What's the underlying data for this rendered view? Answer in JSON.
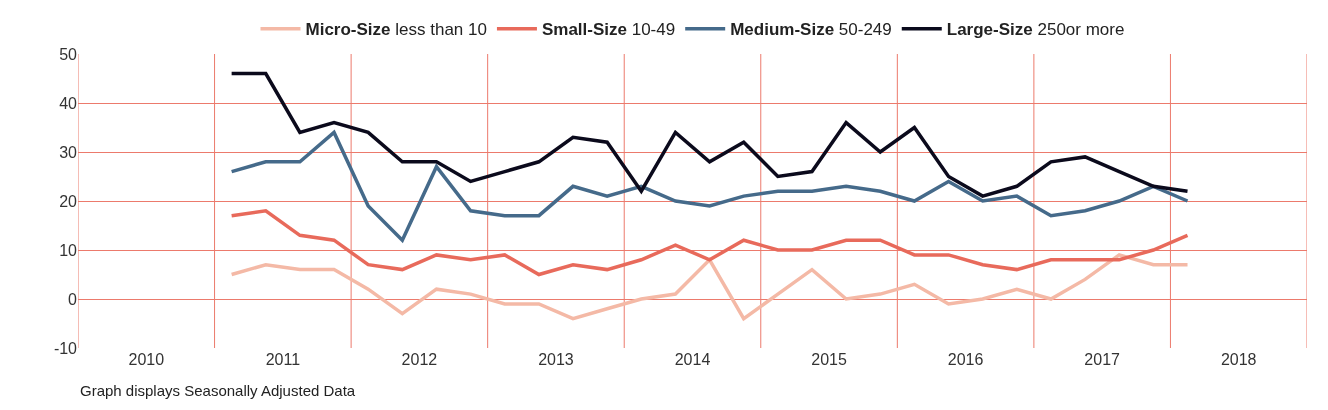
{
  "chart_data": {
    "type": "line",
    "x": [
      2010.625,
      2010.875,
      2011.125,
      2011.375,
      2011.625,
      2011.875,
      2012.125,
      2012.375,
      2012.625,
      2012.875,
      2013.125,
      2013.375,
      2013.625,
      2013.875,
      2014.125,
      2014.375,
      2014.625,
      2014.875,
      2015.125,
      2015.375,
      2015.625,
      2015.875,
      2016.125,
      2016.375,
      2016.625,
      2016.875,
      2017.125,
      2017.375,
      2017.625
    ],
    "series": [
      {
        "name": "Micro-Size less than 10",
        "color": "#f4b9a6",
        "values": [
          5,
          7,
          6,
          6,
          2,
          -3,
          2,
          1,
          -1,
          -1,
          -4,
          -2,
          0,
          1,
          8,
          -4,
          1,
          6,
          0,
          1,
          3,
          -1,
          0,
          2,
          0,
          4,
          9,
          7,
          7
        ]
      },
      {
        "name": "Small-Size 10-49",
        "color": "#e86a5b",
        "values": [
          17,
          18,
          13,
          12,
          7,
          6,
          9,
          8,
          9,
          5,
          7,
          6,
          8,
          11,
          8,
          12,
          10,
          10,
          12,
          12,
          9,
          9,
          7,
          6,
          8,
          8,
          8,
          10,
          13
        ]
      },
      {
        "name": "Medium-Size 50-249",
        "color": "#456a8a",
        "values": [
          26,
          28,
          28,
          34,
          19,
          12,
          27,
          18,
          17,
          17,
          23,
          21,
          23,
          20,
          19,
          21,
          22,
          22,
          23,
          22,
          20,
          24,
          20,
          21,
          17,
          18,
          20,
          23,
          20
        ]
      },
      {
        "name": "Large-Size 250or more",
        "color": "#0b0a1c",
        "values": [
          46,
          46,
          34,
          36,
          34,
          28,
          28,
          24,
          26,
          28,
          33,
          32,
          22,
          34,
          28,
          32,
          25,
          26,
          36,
          30,
          35,
          25,
          21,
          23,
          28,
          29,
          26,
          23,
          22
        ]
      }
    ],
    "xlim": [
      2009.5,
      2018.5
    ],
    "xticks": [
      2010,
      2011,
      2012,
      2013,
      2014,
      2015,
      2016,
      2017,
      2018,
      {
        "value": 2009.5,
        "label": null
      },
      {
        "value": 2010.5,
        "label": null
      },
      {
        "value": 2011.5,
        "label": null
      },
      {
        "value": 2012.5,
        "label": null
      },
      {
        "value": 2013.5,
        "label": null
      },
      {
        "value": 2014.5,
        "label": null
      },
      {
        "value": 2015.5,
        "label": null
      },
      {
        "value": 2016.5,
        "label": null
      },
      {
        "value": 2017.5,
        "label": null
      },
      {
        "value": 2018.5,
        "label": null
      }
    ],
    "ylim": [
      -10,
      50
    ],
    "yticks": [
      -10,
      0,
      10,
      20,
      30,
      40,
      50
    ],
    "grid": true,
    "legend": "top",
    "marker": "none",
    "line_style": "solid",
    "annotations": [
      "Graph displays Seasonally Adjusted Data"
    ]
  }
}
